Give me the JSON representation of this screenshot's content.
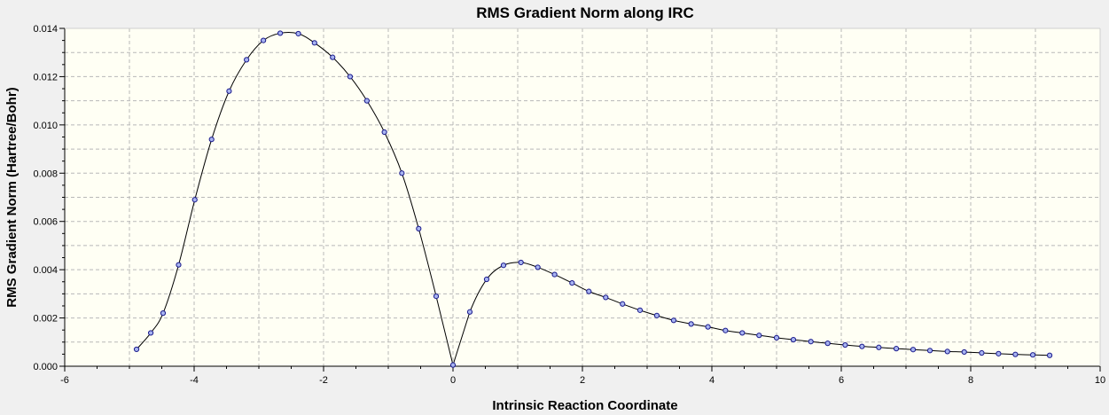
{
  "chart_data": {
    "type": "line",
    "title": "RMS Gradient Norm along IRC",
    "xlabel": "Intrinsic Reaction Coordinate",
    "ylabel": "RMS Gradient Norm (Hartree/Bohr)",
    "xlim": [
      -6,
      10
    ],
    "ylim": [
      0,
      0.014
    ],
    "x_ticks": [
      "-6",
      "-4",
      "-2",
      "0",
      "2",
      "4",
      "6",
      "8",
      "10"
    ],
    "y_ticks": [
      "0.000",
      "0.002",
      "0.004",
      "0.006",
      "0.008",
      "0.010",
      "0.012",
      "0.014"
    ],
    "grid": true,
    "colors": {
      "line": "#000000",
      "marker_fill": "#a8b4f0",
      "marker_stroke": "#1a1a8c",
      "plot_background": "#fffff4"
    },
    "series": [
      {
        "x": [
          -4.89,
          -4.67,
          -4.48,
          -4.24,
          -3.99,
          -3.73,
          -3.46,
          -3.19,
          -2.93,
          -2.67,
          -2.39,
          -2.14,
          -1.86,
          -1.59,
          -1.33,
          -1.06,
          -0.79,
          -0.53,
          -0.26,
          0.0,
          0.26,
          0.52,
          0.78,
          1.05,
          1.31,
          1.57,
          1.84,
          2.1,
          2.36,
          2.62,
          2.89,
          3.15,
          3.41,
          3.68,
          3.94,
          4.21,
          4.47,
          4.73,
          5.0,
          5.26,
          5.53,
          5.79,
          6.06,
          6.32,
          6.58,
          6.85,
          7.11,
          7.37,
          7.64,
          7.9,
          8.17,
          8.43,
          8.69,
          8.96,
          9.22
        ],
        "y": [
          0.0007,
          0.00138,
          0.0022,
          0.0042,
          0.0069,
          0.0094,
          0.0114,
          0.0127,
          0.0135,
          0.0138,
          0.01378,
          0.0134,
          0.0128,
          0.012,
          0.011,
          0.0097,
          0.008,
          0.0057,
          0.0029,
          5e-05,
          0.00225,
          0.0036,
          0.00418,
          0.0043,
          0.0041,
          0.0038,
          0.00345,
          0.0031,
          0.00285,
          0.00258,
          0.00232,
          0.0021,
          0.0019,
          0.00175,
          0.00163,
          0.00148,
          0.00138,
          0.00128,
          0.00118,
          0.0011,
          0.00102,
          0.00095,
          0.00088,
          0.00082,
          0.00078,
          0.00073,
          0.00069,
          0.00065,
          0.00061,
          0.00059,
          0.00055,
          0.00052,
          0.00049,
          0.00047,
          0.00045
        ]
      }
    ]
  }
}
